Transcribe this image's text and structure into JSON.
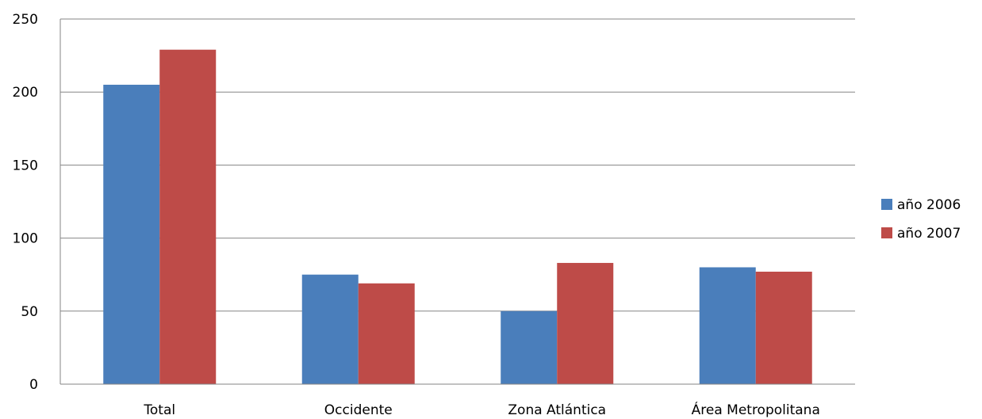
{
  "chart_data": {
    "type": "bar",
    "categories": [
      "Total",
      "Occidente",
      "Zona Atlántica",
      "Área Metropolitana"
    ],
    "series": [
      {
        "name": "año 2006",
        "color": "#4A7EBB",
        "values": [
          205,
          75,
          50,
          80
        ]
      },
      {
        "name": "año 2007",
        "color": "#BE4B48",
        "values": [
          229,
          69,
          83,
          77
        ]
      }
    ],
    "yticks": [
      0,
      50,
      100,
      150,
      200,
      250
    ],
    "ylim": [
      0,
      250
    ],
    "grid": true,
    "legend_position": "right"
  }
}
